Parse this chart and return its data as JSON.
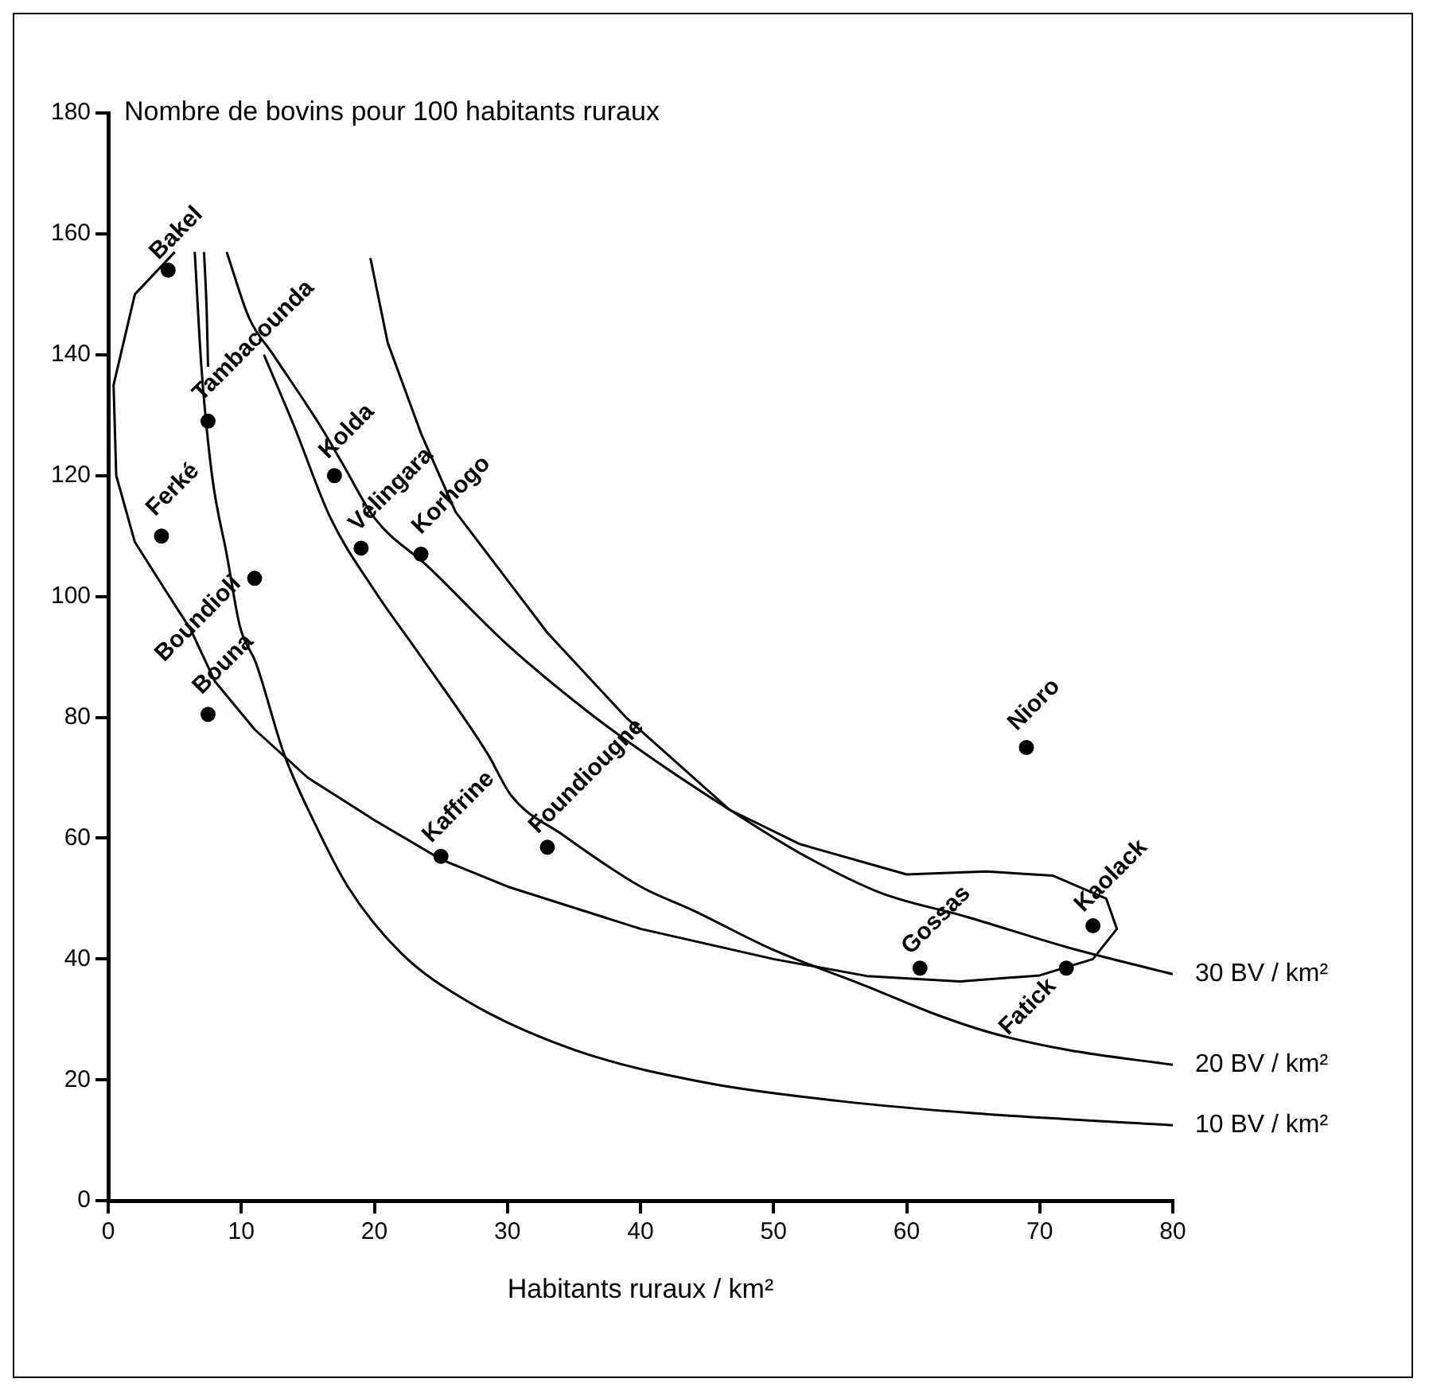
{
  "chart_data": {
    "type": "scatter",
    "ylabel": "Nombre de bovins pour 100 habitants ruraux",
    "xlabel": "Habitants ruraux / km²",
    "xlim": [
      0,
      80
    ],
    "ylim": [
      0,
      180
    ],
    "xticks": [
      0,
      10,
      20,
      30,
      40,
      50,
      60,
      70,
      80
    ],
    "yticks": [
      0,
      20,
      40,
      60,
      80,
      100,
      120,
      140,
      160,
      180
    ],
    "grid": false,
    "legend": false,
    "marker": "circle",
    "series": [
      {
        "color": "#000000",
        "x": [
          4.5,
          7.5,
          17,
          4,
          19,
          23.5,
          11,
          7.5,
          25,
          33,
          69,
          61,
          72,
          74
        ],
        "values": [
          154,
          129,
          120,
          110,
          108,
          107,
          103,
          80.5,
          57,
          58.5,
          75,
          38.5,
          38.5,
          45.5
        ]
      },
      {
        "name": "30 BV / km²",
        "type": "line",
        "marker": "none",
        "color": "#000000",
        "x": [
          8.9,
          10.6,
          12.4,
          16,
          17.6,
          20,
          24,
          30,
          36,
          41,
          46.7,
          52,
          58,
          64.5,
          72,
          80
        ],
        "values": [
          157,
          146,
          140,
          128,
          122,
          113,
          105,
          92,
          81,
          73,
          64.7,
          57.5,
          51,
          47,
          42,
          37.5
        ]
      },
      {
        "name": "20 BV / km²",
        "type": "line",
        "marker": "none",
        "color": "#000000",
        "x": [
          11.7,
          14,
          16.7,
          20,
          23.2,
          28.5,
          30.3,
          34.2,
          40,
          44,
          50,
          57,
          62,
          66.5,
          72,
          80
        ],
        "values": [
          140,
          128,
          113,
          101,
          91,
          74,
          67,
          60.5,
          52,
          48,
          41.5,
          35.5,
          31,
          27.7,
          25,
          22.5
        ]
      },
      {
        "name": "10 BV / km²",
        "type": "line",
        "marker": "none",
        "color": "#000000",
        "x": [
          6.5,
          7,
          7.8,
          8.9,
          9.9,
          11.1,
          13.2,
          15.4,
          18,
          22,
          27,
          35,
          45,
          55,
          65,
          80
        ],
        "values": [
          157,
          138,
          120,
          107,
          95,
          89,
          74,
          63,
          52,
          41,
          33,
          25,
          19.5,
          16.5,
          14.5,
          12.5
        ]
      },
      {
        "type": "line",
        "marker": "none",
        "color": "#000000",
        "x": [
          5,
          2,
          0.4,
          0.6,
          2,
          4.3,
          6.2,
          8,
          11,
          15,
          20,
          25,
          30,
          40,
          50,
          57,
          64,
          70,
          74,
          75.8,
          75,
          71,
          66,
          60,
          52,
          46.7,
          38.9,
          33,
          26.1,
          23.5,
          21,
          19.7
        ],
        "values": [
          157,
          150,
          135,
          120,
          109,
          101,
          94.5,
          86,
          78,
          70,
          63,
          56.5,
          52,
          45,
          40,
          37.2,
          36.3,
          37.3,
          40,
          45,
          50,
          53.8,
          54.5,
          54,
          59,
          64.7,
          80,
          94,
          114,
          127,
          142,
          156
        ]
      },
      {
        "type": "line",
        "marker": "none",
        "color": "#000000",
        "x": [
          7.2,
          7.4,
          7.5
        ],
        "values": [
          157,
          147,
          138
        ]
      }
    ],
    "annotations": [
      {
        "text": "Bakel",
        "x": 4.5,
        "y": 154
      },
      {
        "text": "Tambacounda",
        "x": 7.5,
        "y": 129
      },
      {
        "text": "Kolda",
        "x": 17,
        "y": 120
      },
      {
        "text": "Ferké",
        "x": 4,
        "y": 110
      },
      {
        "text": "Vélingara",
        "x": 19,
        "y": 108
      },
      {
        "text": "Korhogo",
        "x": 23.5,
        "y": 107
      },
      {
        "text": "Boundioli",
        "x": 11,
        "y": 103
      },
      {
        "text": "Bouna",
        "x": 7.5,
        "y": 80.5
      },
      {
        "text": "Kaffrine",
        "x": 25,
        "y": 57
      },
      {
        "text": "Foundiougne",
        "x": 33,
        "y": 58.5
      },
      {
        "text": "Nioro",
        "x": 69,
        "y": 75
      },
      {
        "text": "Gossas",
        "x": 61,
        "y": 38.5
      },
      {
        "text": "Fatick",
        "x": 72,
        "y": 38.5
      },
      {
        "text": "Kaolack",
        "x": 74,
        "y": 45.5
      }
    ]
  }
}
